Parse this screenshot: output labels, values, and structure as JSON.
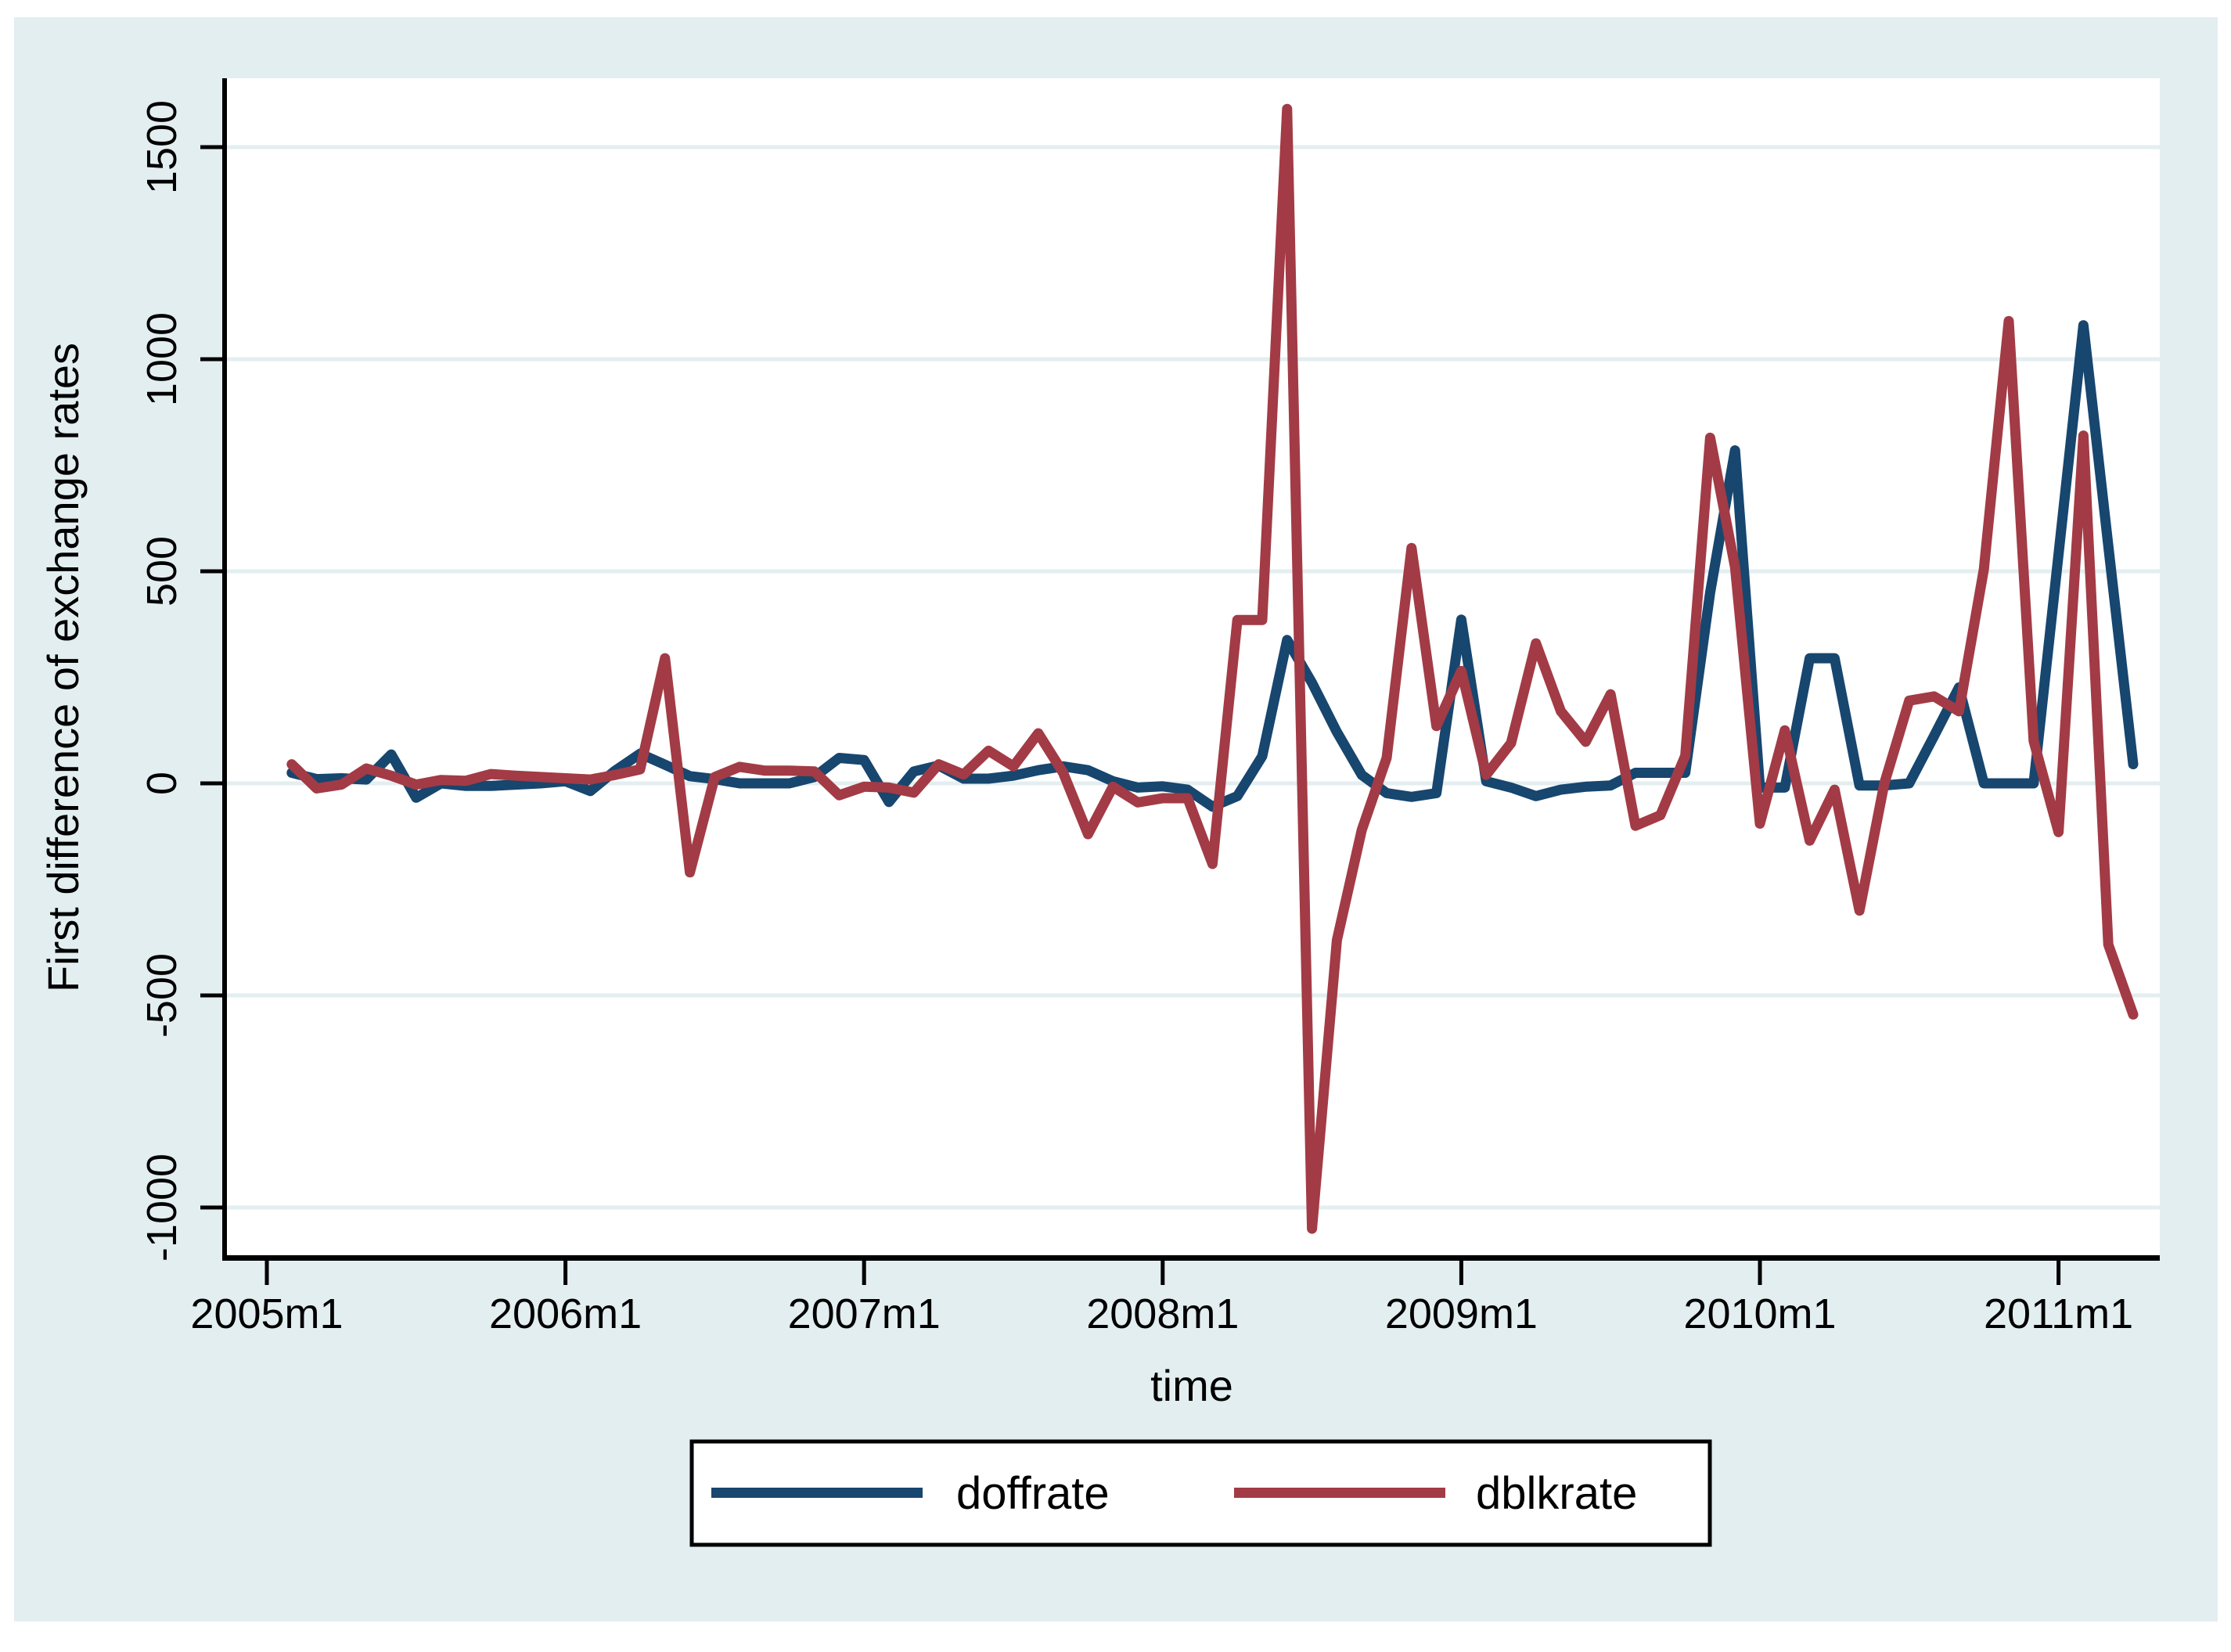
{
  "figure": {
    "page_bg": "#ffffff",
    "canvas_bg": "#e3eef0",
    "plot_bg": "#ffffff",
    "grid_color": "#e3eef0",
    "axis_color": "#000000",
    "text_color": "#000000"
  },
  "y_axis": {
    "title": "First difference of exchange rates",
    "ticks": [
      {
        "value": 1500,
        "label": "1500"
      },
      {
        "value": 1000,
        "label": "1000"
      },
      {
        "value": 500,
        "label": "500"
      },
      {
        "value": 0,
        "label": "0"
      },
      {
        "value": -500,
        "label": "-500"
      },
      {
        "value": -1000,
        "label": "-1000"
      }
    ]
  },
  "x_axis": {
    "title": "time",
    "ticks": [
      {
        "t": 0,
        "label": "2005m1"
      },
      {
        "t": 12,
        "label": "2006m1"
      },
      {
        "t": 24,
        "label": "2007m1"
      },
      {
        "t": 36,
        "label": "2008m1"
      },
      {
        "t": 48,
        "label": "2009m1"
      },
      {
        "t": 60,
        "label": "2010m1"
      },
      {
        "t": 72,
        "label": "2011m1"
      }
    ]
  },
  "legend": {
    "entries": [
      {
        "label": "doffrate",
        "color": "#17466f"
      },
      {
        "label": "dblkrate",
        "color": "#a23b45"
      }
    ]
  },
  "chart_data": {
    "type": "line",
    "title": "",
    "xlabel": "time",
    "ylabel": "First difference of exchange rates",
    "x_unit": "months since 2005m1",
    "x_start": 1,
    "xlim_months": [
      -1.7,
      76
    ],
    "ylim": [
      -1120,
      1660
    ],
    "grid": "horizontal",
    "legend_position": "bottom-center",
    "months": [
      "2005m2",
      "2005m3",
      "2005m4",
      "2005m5",
      "2005m6",
      "2005m7",
      "2005m8",
      "2005m9",
      "2005m10",
      "2005m11",
      "2005m12",
      "2006m1",
      "2006m2",
      "2006m3",
      "2006m4",
      "2006m5",
      "2006m6",
      "2006m7",
      "2006m8",
      "2006m9",
      "2006m10",
      "2006m11",
      "2006m12",
      "2007m1",
      "2007m2",
      "2007m3",
      "2007m4",
      "2007m5",
      "2007m6",
      "2007m7",
      "2007m8",
      "2007m9",
      "2007m10",
      "2007m11",
      "2007m12",
      "2008m1",
      "2008m2",
      "2008m3",
      "2008m4",
      "2008m5",
      "2008m6",
      "2008m7",
      "2008m8",
      "2008m9",
      "2008m10",
      "2008m11",
      "2008m12",
      "2009m1",
      "2009m2",
      "2009m3",
      "2009m4",
      "2009m5",
      "2009m6",
      "2009m7",
      "2009m8",
      "2009m9",
      "2009m10",
      "2009m11",
      "2009m12",
      "2010m1",
      "2010m2",
      "2010m3",
      "2010m4",
      "2010m5",
      "2010m6",
      "2010m7",
      "2010m8",
      "2010m9",
      "2010m10",
      "2010m11",
      "2010m12",
      "2011m1",
      "2011m2",
      "2011m3",
      "2011m4"
    ],
    "series": [
      {
        "name": "doffrate",
        "color": "#17466f",
        "values": [
          25,
          10,
          12,
          9,
          68,
          -34,
          0,
          -6,
          -6,
          -3,
          0,
          5,
          -18,
          30,
          70,
          44,
          17,
          10,
          0,
          0,
          0,
          15,
          60,
          55,
          -44,
          28,
          42,
          11,
          11,
          18,
          31,
          40,
          31,
          5,
          -10,
          -7,
          -15,
          -55,
          -30,
          64,
          338,
          237,
          121,
          20,
          -23,
          -32,
          -23,
          386,
          5,
          -10,
          -30,
          -15,
          -8,
          -5,
          25,
          25,
          25,
          450,
          785,
          -10,
          -10,
          295,
          295,
          -5,
          -5,
          0,
          112,
          226,
          0,
          0,
          0,
          540,
          1080,
          560,
          45
        ]
      },
      {
        "name": "dblkrate",
        "color": "#a23b45",
        "values": [
          45,
          -12,
          -3,
          35,
          18,
          -3,
          8,
          6,
          22,
          18,
          15,
          12,
          9,
          20,
          33,
          295,
          -210,
          15,
          39,
          30,
          30,
          28,
          -28,
          -8,
          -10,
          -22,
          45,
          21,
          77,
          40,
          118,
          25,
          -120,
          -8,
          -45,
          -35,
          -35,
          -190,
          385,
          385,
          1590,
          -1050,
          -370,
          -110,
          60,
          555,
          135,
          265,
          20,
          95,
          330,
          170,
          98,
          210,
          -100,
          -75,
          65,
          815,
          510,
          -95,
          125,
          -135,
          -15,
          -300,
          0,
          195,
          205,
          170,
          505,
          1090,
          100,
          -115,
          820,
          -380,
          -545
        ]
      }
    ]
  }
}
